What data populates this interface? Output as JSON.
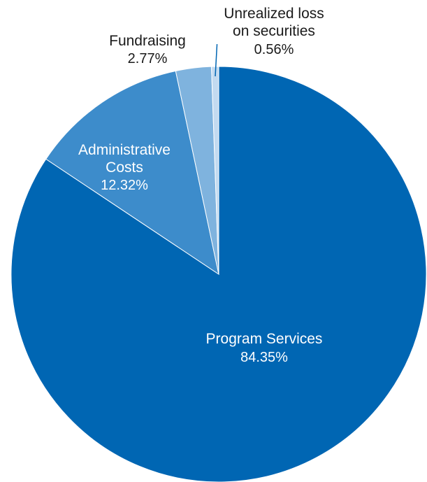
{
  "chart_data": {
    "type": "pie",
    "slices": [
      {
        "label": "Program Services",
        "value": 84.35,
        "value_label": "84.35%",
        "color": "#0066b3"
      },
      {
        "label": "Administrative Costs",
        "label_lines": [
          "Administrative",
          "Costs"
        ],
        "value": 12.32,
        "value_label": "12.32%",
        "color": "#3d8ccb"
      },
      {
        "label": "Fundraising",
        "value": 2.77,
        "value_label": "2.77%",
        "color": "#7fb3de"
      },
      {
        "label": "Unrealized loss on securities",
        "label_lines": [
          "Unrealized loss",
          "on securities"
        ],
        "value": 0.56,
        "value_label": "0.56%",
        "color": "#c2daf0"
      }
    ],
    "start_angle_deg": 0,
    "direction": "clockwise",
    "legend": "none"
  }
}
